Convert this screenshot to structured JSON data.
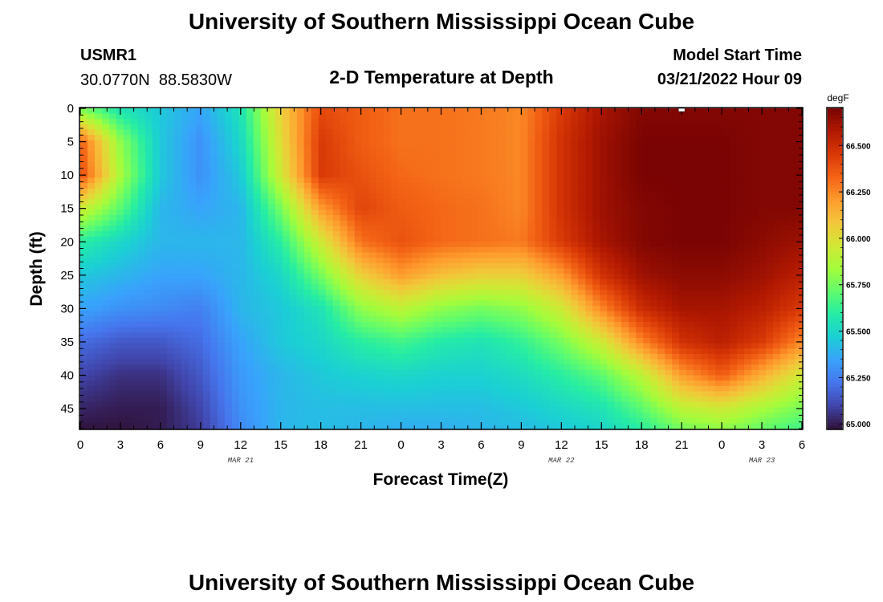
{
  "header": {
    "title": "University of Southern Mississippi Ocean Cube",
    "station_id": "USMR1",
    "coordinates": "30.0770N  88.5830W",
    "plot_title": "2-D Temperature at Depth",
    "model_start_label": "Model Start Time",
    "model_start_value": "03/21/2022 Hour 09"
  },
  "footer": {
    "title": "University of Southern Mississippi Ocean Cube"
  },
  "chart_data": {
    "type": "heatmap",
    "title": "2-D Temperature at Depth",
    "xlabel": "Forecast Time(Z)",
    "ylabel": "Depth (ft)",
    "x_tick_labels": [
      "0",
      "3",
      "6",
      "9",
      "12",
      "15",
      "18",
      "21",
      "0",
      "3",
      "6",
      "9",
      "12",
      "15",
      "18",
      "21",
      "0",
      "3",
      "6"
    ],
    "x_date_labels": [
      "MAR 21",
      "MAR 22",
      "MAR 23"
    ],
    "x_range_hours": [
      0,
      54
    ],
    "y_tick_labels": [
      "0",
      "5",
      "10",
      "15",
      "20",
      "25",
      "30",
      "35",
      "40",
      "45"
    ],
    "y_range_ft": [
      0,
      48
    ],
    "y_inverted": true,
    "colorbar": {
      "unit": "degF",
      "range": [
        64.975,
        66.7
      ],
      "tick_labels": [
        "65.000",
        "65.250",
        "65.500",
        "65.750",
        "66.000",
        "66.250",
        "66.500"
      ],
      "colors": [
        "#30123b",
        "#4145ab",
        "#4675ed",
        "#39a2fc",
        "#1bcfd4",
        "#24eca6",
        "#61fc6c",
        "#a4fc3b",
        "#d1e834",
        "#f3c63a",
        "#fe9b2d",
        "#f36315",
        "#d93806",
        "#b11901",
        "#7a0403"
      ]
    },
    "temperature_grid": {
      "x_hours": [
        0,
        3,
        6,
        9,
        12,
        15,
        18,
        21,
        24,
        27,
        30,
        33,
        36,
        39,
        42,
        45,
        48,
        51,
        54
      ],
      "y_depths_ft": [
        0,
        5,
        10,
        15,
        20,
        25,
        30,
        35,
        40,
        45,
        48
      ],
      "values_degF": [
        [
          65.75,
          65.55,
          65.45,
          65.35,
          65.55,
          66.05,
          66.4,
          66.35,
          66.3,
          66.3,
          66.28,
          66.25,
          66.45,
          66.6,
          66.68,
          66.68,
          66.68,
          66.68,
          66.68
        ],
        [
          66.35,
          65.8,
          65.45,
          65.3,
          65.5,
          66.0,
          66.45,
          66.35,
          66.3,
          66.3,
          66.28,
          66.25,
          66.48,
          66.62,
          66.7,
          66.7,
          66.7,
          66.68,
          66.68
        ],
        [
          66.4,
          65.85,
          65.45,
          65.3,
          65.45,
          65.95,
          66.45,
          66.38,
          66.32,
          66.3,
          66.28,
          66.25,
          66.48,
          66.62,
          66.7,
          66.7,
          66.7,
          66.68,
          66.68
        ],
        [
          65.95,
          65.7,
          65.4,
          65.35,
          65.4,
          65.75,
          66.2,
          66.42,
          66.35,
          66.32,
          66.3,
          66.25,
          66.48,
          66.62,
          66.68,
          66.7,
          66.7,
          66.68,
          66.68
        ],
        [
          65.6,
          65.5,
          65.4,
          65.4,
          65.4,
          65.6,
          65.95,
          66.3,
          66.38,
          66.32,
          66.3,
          66.28,
          66.45,
          66.6,
          66.68,
          66.7,
          66.7,
          66.66,
          66.62
        ],
        [
          65.45,
          65.4,
          65.35,
          65.35,
          65.4,
          65.5,
          65.75,
          66.05,
          66.2,
          66.1,
          66.05,
          66.05,
          66.2,
          66.48,
          66.62,
          66.66,
          66.66,
          66.62,
          66.55
        ],
        [
          65.35,
          65.3,
          65.28,
          65.25,
          65.4,
          65.45,
          65.55,
          65.8,
          65.9,
          65.8,
          65.75,
          65.8,
          65.95,
          66.25,
          66.5,
          66.6,
          66.6,
          66.55,
          66.45
        ],
        [
          65.2,
          65.15,
          65.15,
          65.2,
          65.35,
          65.45,
          65.5,
          65.6,
          65.65,
          65.58,
          65.55,
          65.62,
          65.75,
          65.95,
          66.25,
          66.48,
          66.55,
          66.45,
          66.25
        ],
        [
          65.1,
          65.05,
          65.05,
          65.15,
          65.32,
          65.4,
          65.45,
          65.48,
          65.5,
          65.48,
          65.48,
          65.52,
          65.6,
          65.7,
          65.9,
          66.2,
          66.35,
          66.15,
          65.95
        ],
        [
          65.02,
          65.0,
          65.0,
          65.1,
          65.3,
          65.4,
          65.42,
          65.42,
          65.42,
          65.42,
          65.42,
          65.45,
          65.5,
          65.55,
          65.7,
          65.9,
          65.95,
          65.85,
          65.75
        ],
        [
          64.98,
          64.98,
          65.0,
          65.08,
          65.28,
          65.4,
          65.42,
          65.4,
          65.38,
          65.38,
          65.4,
          65.42,
          65.45,
          65.5,
          65.6,
          65.75,
          65.8,
          65.72,
          65.65
        ]
      ]
    },
    "grid": false
  }
}
